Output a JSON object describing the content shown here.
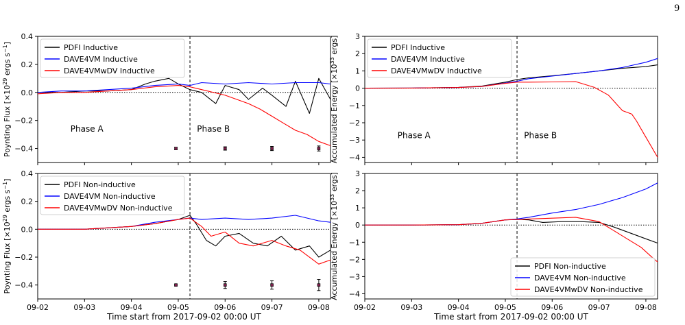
{
  "page_number": "9",
  "chart_data": [
    {
      "panel": "top-left",
      "type": "line",
      "ylabel": "Poynting Flux [×10^29 ergs s^-1]",
      "ylabel_parts": {
        "main": "Poynting Flux [×10",
        "exp1": "29",
        "mid": " ergs s",
        "exp2": "−1",
        "end": "]"
      },
      "xlabel": "",
      "ylim": [
        -0.5,
        0.4
      ],
      "yticks": [
        0.4,
        0.2,
        0.0,
        -0.2,
        -0.4
      ],
      "ytick_labels": [
        "0.4",
        "0.2",
        "0.0",
        "−0.2",
        "−0.4"
      ],
      "xticks": [
        0,
        1,
        2,
        3,
        4,
        5,
        6
      ],
      "xtick_labels": [],
      "xlim": [
        0,
        6.25
      ],
      "vline_x": 3.25,
      "hline_y": 0.0,
      "legend_position": "top-left",
      "annotations": [
        {
          "text": "Phase A",
          "x": 1.05,
          "y": -0.28
        },
        {
          "text": "Phase B",
          "x": 3.75,
          "y": -0.28
        }
      ],
      "error_points": [
        {
          "x": 2.95,
          "y": -0.4,
          "err": 0.008
        },
        {
          "x": 4.0,
          "y": -0.4,
          "err": 0.012
        },
        {
          "x": 5.0,
          "y": -0.4,
          "err": 0.015
        },
        {
          "x": 6.0,
          "y": -0.4,
          "err": 0.018
        }
      ],
      "series": [
        {
          "name": "PDFI Inductive",
          "color": "#000000",
          "x": [
            0,
            0.5,
            1.0,
            1.5,
            2.0,
            2.3,
            2.5,
            2.8,
            3.0,
            3.25,
            3.5,
            3.8,
            4.0,
            4.3,
            4.5,
            4.8,
            5.0,
            5.3,
            5.5,
            5.8,
            6.0,
            6.25
          ],
          "y": [
            0.0,
            0.0,
            0.01,
            0.01,
            0.02,
            0.06,
            0.08,
            0.1,
            0.06,
            0.02,
            0.0,
            -0.08,
            0.05,
            0.02,
            -0.05,
            0.03,
            -0.02,
            -0.1,
            0.08,
            -0.15,
            0.1,
            -0.05
          ]
        },
        {
          "name": "DAVE4VM Inductive",
          "color": "#0000ff",
          "x": [
            0,
            0.5,
            1.0,
            1.5,
            2.0,
            2.5,
            3.0,
            3.25,
            3.5,
            4.0,
            4.5,
            5.0,
            5.5,
            6.0,
            6.25
          ],
          "y": [
            0.0,
            0.01,
            0.01,
            0.02,
            0.03,
            0.05,
            0.06,
            0.05,
            0.07,
            0.06,
            0.07,
            0.06,
            0.07,
            0.07,
            0.06
          ]
        },
        {
          "name": "DAVE4VMwDV Inductive",
          "color": "#ff0000",
          "x": [
            0,
            0.5,
            1.0,
            1.5,
            2.0,
            2.5,
            3.0,
            3.25,
            3.5,
            4.0,
            4.25,
            4.5,
            4.75,
            5.0,
            5.25,
            5.5,
            5.75,
            6.0,
            6.25
          ],
          "y": [
            -0.01,
            0.0,
            0.0,
            0.01,
            0.02,
            0.04,
            0.05,
            0.04,
            0.02,
            -0.02,
            -0.05,
            -0.08,
            -0.12,
            -0.17,
            -0.22,
            -0.27,
            -0.3,
            -0.35,
            -0.38
          ]
        }
      ]
    },
    {
      "panel": "top-right",
      "type": "line",
      "ylabel": "Accumulated Energy [×10^33 ergs]",
      "ylabel_parts": {
        "main": "Accumulated Energy [×10",
        "exp1": "33",
        "mid": " ergs",
        "exp2": "",
        "end": "]"
      },
      "xlabel": "",
      "ylim": [
        -4.3,
        3
      ],
      "yticks": [
        3,
        2,
        1,
        0,
        -1,
        -2,
        -3,
        -4
      ],
      "ytick_labels": [
        "3",
        "2",
        "1",
        "0",
        "−1",
        "−2",
        "−3",
        "−4"
      ],
      "xticks": [
        0,
        1,
        2,
        3,
        4,
        5,
        6
      ],
      "xtick_labels": [],
      "xlim": [
        0,
        6.25
      ],
      "vline_x": 3.25,
      "hline_y": 0.0,
      "legend_position": "top-left",
      "annotations": [
        {
          "text": "Phase A",
          "x": 1.05,
          "y": -2.9
        },
        {
          "text": "Phase B",
          "x": 3.75,
          "y": -2.9
        }
      ],
      "series": [
        {
          "name": "PDFI Inductive",
          "color": "#000000",
          "x": [
            0,
            1.0,
            2.0,
            2.5,
            3.0,
            3.25,
            3.5,
            4.0,
            4.5,
            5.0,
            5.5,
            6.0,
            6.25
          ],
          "y": [
            0.0,
            0.01,
            0.05,
            0.12,
            0.35,
            0.5,
            0.6,
            0.72,
            0.85,
            1.0,
            1.15,
            1.25,
            1.35
          ]
        },
        {
          "name": "DAVE4VM Inductive",
          "color": "#0000ff",
          "x": [
            0,
            1.0,
            2.0,
            2.5,
            3.0,
            3.25,
            3.5,
            4.0,
            4.5,
            5.0,
            5.5,
            6.0,
            6.25
          ],
          "y": [
            0.0,
            0.01,
            0.04,
            0.1,
            0.3,
            0.4,
            0.55,
            0.7,
            0.85,
            1.0,
            1.2,
            1.5,
            1.72
          ]
        },
        {
          "name": "DAVE4VMwDV Inductive",
          "color": "#ff0000",
          "x": [
            0,
            1.0,
            2.0,
            2.5,
            3.0,
            3.25,
            3.5,
            4.0,
            4.5,
            4.9,
            5.2,
            5.5,
            5.7,
            5.8,
            5.95,
            6.1,
            6.25
          ],
          "y": [
            0.0,
            0.01,
            0.04,
            0.1,
            0.28,
            0.35,
            0.35,
            0.36,
            0.38,
            0.05,
            -0.4,
            -1.3,
            -1.5,
            -1.9,
            -2.6,
            -3.3,
            -4.0
          ]
        }
      ]
    },
    {
      "panel": "bottom-left",
      "type": "line",
      "ylabel": "Poynting Flux [×10^29 ergs s^-1]",
      "ylabel_parts": {
        "main": "Poynting Flux [×10",
        "exp1": "29",
        "mid": " ergs s",
        "exp2": "−1",
        "end": "]"
      },
      "xlabel": "Time start from 2017-09-02 00:00 UT",
      "ylim": [
        -0.5,
        0.4
      ],
      "yticks": [
        0.4,
        0.2,
        0.0,
        -0.2,
        -0.4
      ],
      "ytick_labels": [
        "0.4",
        "0.2",
        "0.0",
        "−0.2",
        "−0.4"
      ],
      "xticks": [
        0,
        1,
        2,
        3,
        4,
        5,
        6
      ],
      "xtick_labels": [
        "09-02",
        "09-03",
        "09-04",
        "09-05",
        "09-06",
        "09-07",
        "09-08"
      ],
      "xlim": [
        0,
        6.25
      ],
      "vline_x": 3.25,
      "hline_y": 0.0,
      "legend_position": "top-left",
      "annotations": [],
      "error_points": [
        {
          "x": 2.95,
          "y": -0.4,
          "err": 0.006
        },
        {
          "x": 4.0,
          "y": -0.4,
          "err": 0.025
        },
        {
          "x": 5.0,
          "y": -0.4,
          "err": 0.03
        },
        {
          "x": 6.0,
          "y": -0.4,
          "err": 0.04
        }
      ],
      "series": [
        {
          "name": "PDFI Non-inductive",
          "color": "#000000",
          "x": [
            0,
            0.5,
            1.0,
            1.5,
            2.0,
            2.5,
            3.0,
            3.25,
            3.4,
            3.6,
            3.8,
            4.0,
            4.3,
            4.6,
            4.9,
            5.2,
            5.5,
            5.8,
            6.0,
            6.25
          ],
          "y": [
            0.0,
            0.0,
            0.0,
            0.01,
            0.02,
            0.04,
            0.07,
            0.1,
            0.03,
            -0.08,
            -0.12,
            -0.05,
            -0.03,
            -0.1,
            -0.12,
            -0.05,
            -0.15,
            -0.12,
            -0.2,
            -0.15
          ]
        },
        {
          "name": "DAVE4VM Non-inductive",
          "color": "#0000ff",
          "x": [
            0,
            1.0,
            2.0,
            2.5,
            3.0,
            3.25,
            3.5,
            4.0,
            4.5,
            5.0,
            5.5,
            6.0,
            6.25
          ],
          "y": [
            0.0,
            0.0,
            0.02,
            0.05,
            0.07,
            0.08,
            0.07,
            0.08,
            0.07,
            0.08,
            0.1,
            0.06,
            0.05
          ]
        },
        {
          "name": "DAVE4VMwDV Non-inductive",
          "color": "#ff0000",
          "x": [
            0,
            1.0,
            2.0,
            2.5,
            3.0,
            3.25,
            3.5,
            3.7,
            4.0,
            4.3,
            4.6,
            5.0,
            5.3,
            5.6,
            6.0,
            6.25
          ],
          "y": [
            0.0,
            0.0,
            0.02,
            0.04,
            0.07,
            0.08,
            0.02,
            -0.05,
            -0.02,
            -0.1,
            -0.12,
            -0.08,
            -0.12,
            -0.15,
            -0.25,
            -0.22
          ]
        }
      ]
    },
    {
      "panel": "bottom-right",
      "type": "line",
      "ylabel": "Accumulated Energy [×10^33 ergs]",
      "ylabel_parts": {
        "main": "Accumulated Energy [×10",
        "exp1": "33",
        "mid": " ergs",
        "exp2": "",
        "end": "]"
      },
      "xlabel": "Time start from 2017-09-02 00:00 UT",
      "ylim": [
        -4.3,
        3
      ],
      "yticks": [
        3,
        2,
        1,
        0,
        -1,
        -2,
        -3,
        -4
      ],
      "ytick_labels": [
        "3",
        "2",
        "1",
        "0",
        "−1",
        "−2",
        "−3",
        "−4"
      ],
      "xticks": [
        0,
        1,
        2,
        3,
        4,
        5,
        6
      ],
      "xtick_labels": [
        "09-02",
        "09-03",
        "09-04",
        "09-05",
        "09-06",
        "09-07",
        "09-08"
      ],
      "xlim": [
        0,
        6.25
      ],
      "vline_x": 3.25,
      "hline_y": 0.0,
      "legend_position": "bottom-right",
      "annotations": [],
      "series": [
        {
          "name": "PDFI Non-inductive",
          "color": "#000000",
          "x": [
            0,
            1.0,
            2.0,
            2.5,
            3.0,
            3.25,
            3.5,
            3.8,
            4.2,
            4.6,
            5.0,
            5.3,
            5.6,
            6.0,
            6.25
          ],
          "y": [
            0.0,
            0.0,
            0.02,
            0.1,
            0.3,
            0.33,
            0.3,
            0.15,
            0.2,
            0.2,
            0.15,
            -0.1,
            -0.4,
            -0.8,
            -1.05
          ]
        },
        {
          "name": "DAVE4VM Non-inductive",
          "color": "#0000ff",
          "x": [
            0,
            1.0,
            2.0,
            2.5,
            3.0,
            3.25,
            3.5,
            4.0,
            4.5,
            5.0,
            5.5,
            6.0,
            6.25
          ],
          "y": [
            0.0,
            0.0,
            0.02,
            0.1,
            0.3,
            0.35,
            0.45,
            0.7,
            0.9,
            1.2,
            1.6,
            2.1,
            2.45
          ]
        },
        {
          "name": "DAVE4VMwDV Non-inductive",
          "color": "#ff0000",
          "x": [
            0,
            1.0,
            2.0,
            2.5,
            3.0,
            3.25,
            3.5,
            4.0,
            4.5,
            5.0,
            5.3,
            5.6,
            5.9,
            6.1,
            6.25
          ],
          "y": [
            0.0,
            0.0,
            0.02,
            0.1,
            0.3,
            0.32,
            0.35,
            0.4,
            0.45,
            0.2,
            -0.3,
            -0.8,
            -1.3,
            -1.8,
            -2.15
          ]
        }
      ]
    }
  ]
}
